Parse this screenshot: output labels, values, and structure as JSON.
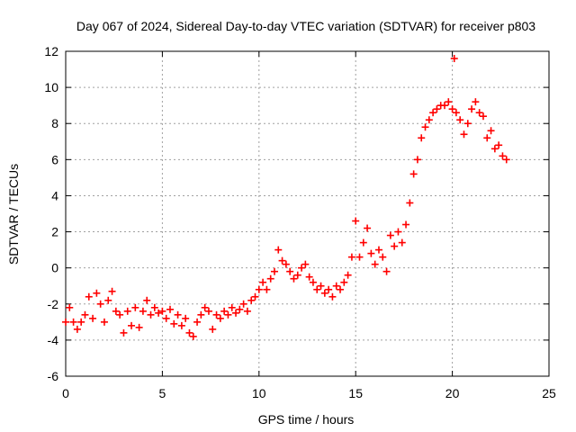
{
  "chart_data": {
    "type": "scatter",
    "title": "Day 067 of 2024, Sidereal Day-to-day VTEC variation (SDTVAR) for receiver p803",
    "xlabel": "GPS time / hours",
    "ylabel": "SDTVAR / TECUs",
    "xlim": [
      0,
      25
    ],
    "ylim": [
      -6,
      12
    ],
    "xticks": [
      0,
      5,
      10,
      15,
      20,
      25
    ],
    "yticks": [
      -6,
      -4,
      -2,
      0,
      2,
      4,
      6,
      8,
      10,
      12
    ],
    "xtick_labels": [
      "0",
      "5",
      "10",
      "15",
      "20",
      "25"
    ],
    "ytick_labels": [
      "-6",
      "-4",
      "-2",
      "0",
      "2",
      "4",
      "6",
      "8",
      "10",
      "12"
    ],
    "grid": true,
    "marker": "+",
    "color": "#ff0000",
    "series": [
      {
        "name": "SDTVAR",
        "x": [
          0.0,
          0.2,
          0.4,
          0.6,
          0.8,
          1.0,
          1.2,
          1.4,
          1.6,
          1.8,
          2.0,
          2.2,
          2.4,
          2.6,
          2.8,
          3.0,
          3.2,
          3.4,
          3.6,
          3.8,
          4.0,
          4.2,
          4.4,
          4.6,
          4.8,
          5.0,
          5.2,
          5.4,
          5.6,
          5.8,
          6.0,
          6.2,
          6.4,
          6.6,
          6.8,
          7.0,
          7.2,
          7.4,
          7.6,
          7.8,
          8.0,
          8.2,
          8.4,
          8.6,
          8.8,
          9.0,
          9.2,
          9.4,
          9.6,
          9.8,
          10.0,
          10.2,
          10.4,
          10.6,
          10.8,
          11.0,
          11.2,
          11.4,
          11.6,
          11.8,
          12.0,
          12.2,
          12.4,
          12.6,
          12.8,
          13.0,
          13.2,
          13.4,
          13.6,
          13.8,
          14.0,
          14.2,
          14.4,
          14.6,
          14.8,
          15.0,
          15.2,
          15.4,
          15.6,
          15.8,
          16.0,
          16.2,
          16.4,
          16.6,
          16.8,
          17.0,
          17.2,
          17.4,
          17.6,
          17.8,
          18.0,
          18.2,
          18.4,
          18.6,
          18.8,
          19.0,
          19.2,
          19.4,
          19.6,
          19.8,
          20.0,
          20.1,
          20.2,
          20.4,
          20.6,
          20.8,
          21.0,
          21.2,
          21.4,
          21.6,
          21.8,
          22.0,
          22.2,
          22.4,
          22.6,
          22.8
        ],
        "y": [
          -3.0,
          -2.2,
          -3.0,
          -3.4,
          -3.0,
          -2.6,
          -1.6,
          -2.8,
          -1.4,
          -2.0,
          -3.0,
          -1.8,
          -1.3,
          -2.4,
          -2.6,
          -3.6,
          -2.4,
          -3.2,
          -2.2,
          -3.3,
          -2.4,
          -1.8,
          -2.6,
          -2.2,
          -2.5,
          -2.4,
          -2.8,
          -2.3,
          -3.1,
          -2.6,
          -3.2,
          -2.8,
          -3.6,
          -3.8,
          -3.0,
          -2.6,
          -2.2,
          -2.4,
          -3.4,
          -2.6,
          -2.8,
          -2.4,
          -2.6,
          -2.2,
          -2.5,
          -2.3,
          -2.0,
          -2.4,
          -1.8,
          -1.6,
          -1.2,
          -0.8,
          -1.2,
          -0.6,
          -0.2,
          1.0,
          0.4,
          0.2,
          -0.2,
          -0.6,
          -0.4,
          0.0,
          0.2,
          -0.5,
          -0.8,
          -1.2,
          -1.0,
          -1.4,
          -1.2,
          -1.6,
          -1.0,
          -1.2,
          -0.8,
          -0.4,
          0.6,
          2.6,
          0.6,
          1.4,
          2.2,
          0.8,
          0.2,
          1.0,
          0.6,
          -0.2,
          1.8,
          1.2,
          2.0,
          1.4,
          2.4,
          3.6,
          5.2,
          6.0,
          7.2,
          7.8,
          8.2,
          8.6,
          8.8,
          9.0,
          9.0,
          9.2,
          8.8,
          11.6,
          8.6,
          8.2,
          7.4,
          8.0,
          8.8,
          9.2,
          8.6,
          8.4,
          7.2,
          7.6,
          6.6,
          6.8,
          6.2,
          6.0
        ]
      }
    ]
  }
}
